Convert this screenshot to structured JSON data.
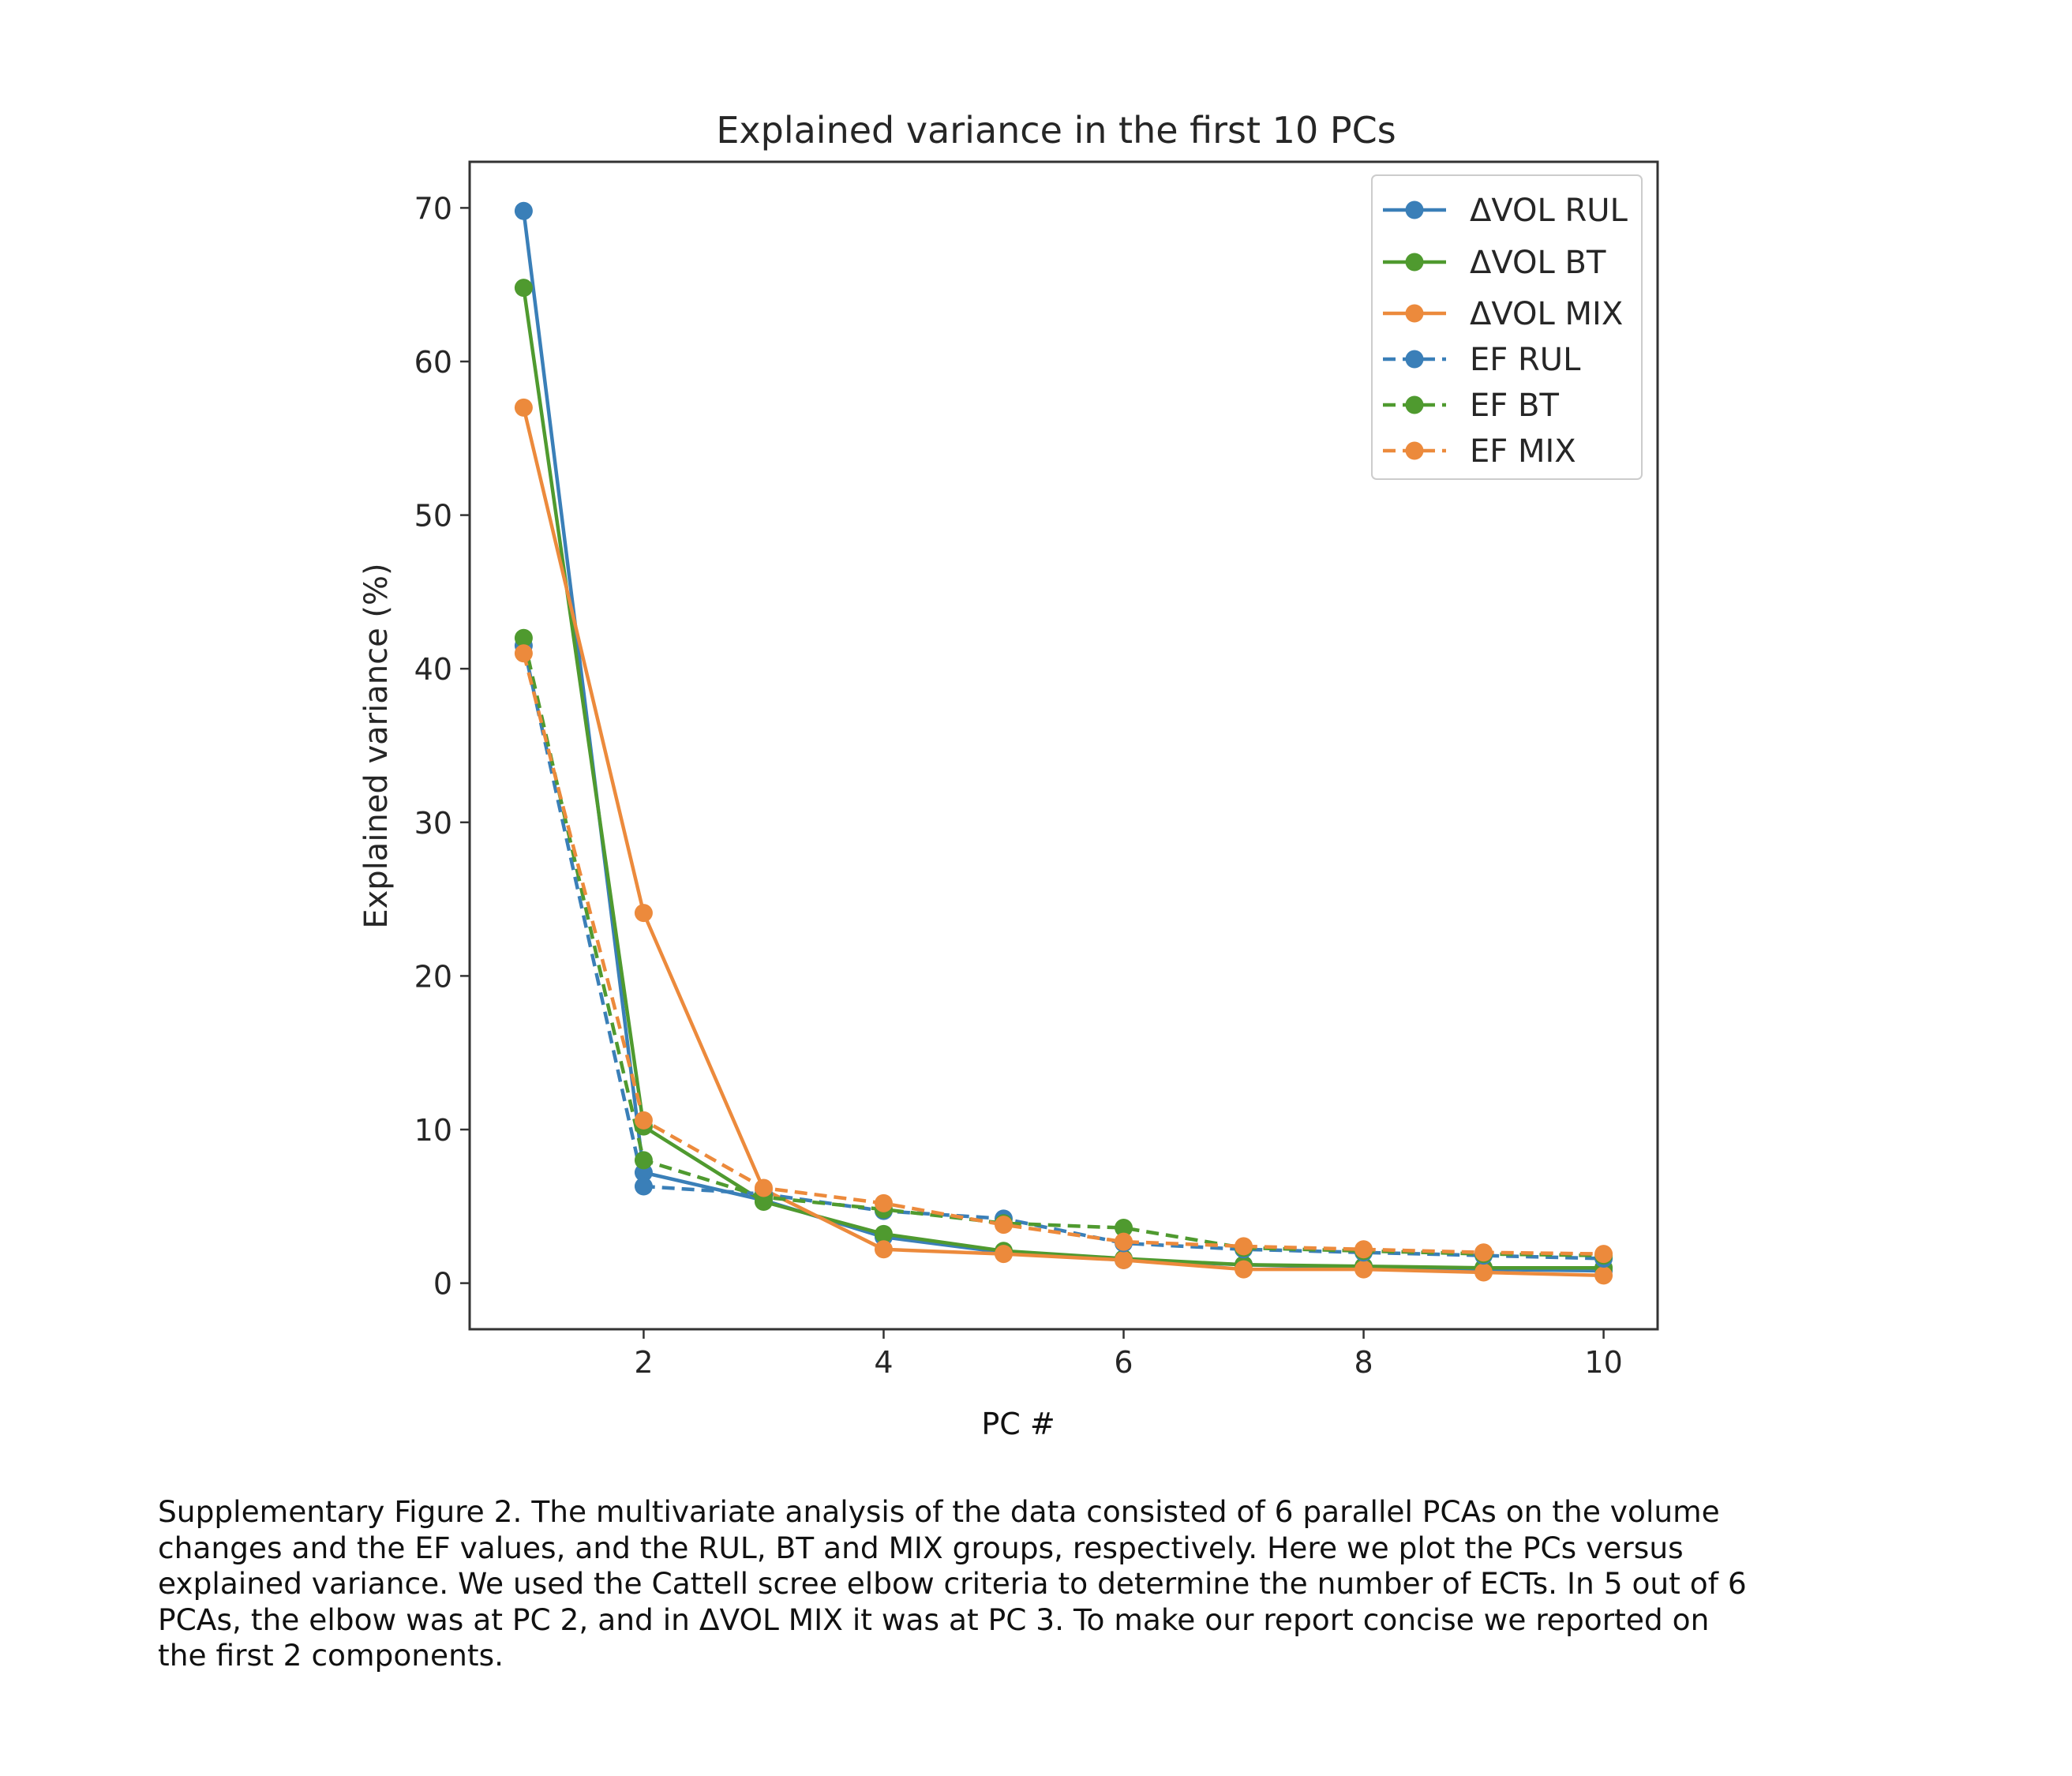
{
  "chart_data": {
    "type": "line",
    "title": "Explained variance in the first 10 PCs",
    "xlabel": "PC #",
    "ylabel": "Explained variance (%)",
    "xlim": [
      0.55,
      10.45
    ],
    "ylim": [
      -3,
      73
    ],
    "xticks": [
      2,
      4,
      6,
      8,
      10
    ],
    "yticks": [
      0,
      10,
      20,
      30,
      40,
      50,
      60,
      70
    ],
    "grid": false,
    "legend_position": "top-right",
    "x": [
      1,
      2,
      3,
      4,
      5,
      6,
      7,
      8,
      9,
      10
    ],
    "series": [
      {
        "name": "ΔVOL RUL",
        "color": "#3a7fb8",
        "style": "solid",
        "values": [
          69.8,
          7.2,
          5.4,
          3.0,
          2.0,
          1.5,
          1.2,
          1.0,
          0.9,
          0.8
        ]
      },
      {
        "name": "ΔVOL BT",
        "color": "#4f9a2f",
        "style": "solid",
        "values": [
          64.8,
          10.2,
          5.3,
          3.2,
          2.1,
          1.6,
          1.2,
          1.1,
          1.0,
          1.0
        ]
      },
      {
        "name": "ΔVOL MIX",
        "color": "#ec8a3c",
        "style": "solid",
        "values": [
          57.0,
          24.1,
          6.1,
          2.2,
          1.9,
          1.5,
          0.9,
          0.9,
          0.7,
          0.5
        ]
      },
      {
        "name": "EF RUL",
        "color": "#3a7fb8",
        "style": "dashed",
        "values": [
          41.5,
          6.3,
          5.8,
          4.7,
          4.2,
          2.6,
          2.2,
          2.0,
          1.8,
          1.6
        ]
      },
      {
        "name": "EF BT",
        "color": "#4f9a2f",
        "style": "dashed",
        "values": [
          42.0,
          8.0,
          5.6,
          4.8,
          3.9,
          3.6,
          2.3,
          2.1,
          1.9,
          1.8
        ]
      },
      {
        "name": "EF MIX",
        "color": "#ec8a3c",
        "style": "dashed",
        "values": [
          41.0,
          10.6,
          6.2,
          5.2,
          3.8,
          2.7,
          2.4,
          2.2,
          2.0,
          1.9
        ]
      }
    ]
  },
  "caption": {
    "lines": [
      "Supplementary Figure 2. The multivariate analysis of the data consisted of 6 parallel PCAs on the volume",
      "changes and the EF values, and the RUL, BT and MIX groups, respectively. Here we plot the PCs versus",
      "explained variance. We used the Cattell scree elbow criteria to determine the number of ECTs. In 5 out of 6",
      "PCAs, the elbow was at PC 2, and in ΔVOL MIX it was at PC 3. To make our report concise we reported on",
      "the first 2 components."
    ]
  }
}
